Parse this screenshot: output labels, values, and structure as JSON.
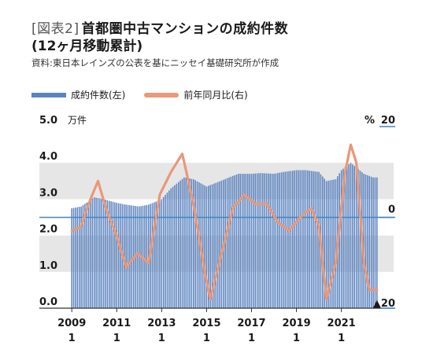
{
  "title_tag": "[図表2]",
  "title": "首都圏中古マンションの成約件数",
  "subtitle": "(12ヶ月移動累計)",
  "source": "資料:東日本レインズの公表を基にニッセイ基礎研究所が作成",
  "colors": {
    "bar": "#5b83bf",
    "line": "#e9987a",
    "band": "#e6e6e6",
    "zero": "#3f86c6"
  },
  "chart_data": {
    "type": "bar+line",
    "legend": [
      "成約件数(左)",
      "前年同月比(右)"
    ],
    "left_axis": {
      "unit": "万件",
      "ylim": [
        0,
        5
      ],
      "ticks": [
        "0.0",
        "1.0",
        "2.0",
        "3.0",
        "4.0",
        "5.0"
      ]
    },
    "right_axis": {
      "unit": "%",
      "ylim": [
        -20,
        20
      ],
      "ticks": [
        "▲20",
        "0",
        "20"
      ]
    },
    "x_ticks": [
      {
        "year": "2009",
        "month": "1"
      },
      {
        "year": "2011",
        "month": "1"
      },
      {
        "year": "2013",
        "month": "1"
      },
      {
        "year": "2015",
        "month": "1"
      },
      {
        "year": "2017",
        "month": "1"
      },
      {
        "year": "2019",
        "month": "1"
      },
      {
        "year": "2021",
        "month": "1"
      }
    ],
    "x_start": "2009-01",
    "series": [
      {
        "name": "成約件数(左)",
        "type": "bar",
        "anchors": [
          [
            "2009-01",
            2.75
          ],
          [
            "2009-06",
            2.8
          ],
          [
            "2010-01",
            3.05
          ],
          [
            "2010-06",
            3.0
          ],
          [
            "2011-01",
            2.9
          ],
          [
            "2011-06",
            2.85
          ],
          [
            "2012-01",
            2.8
          ],
          [
            "2012-06",
            2.85
          ],
          [
            "2013-01",
            3.0
          ],
          [
            "2013-06",
            3.3
          ],
          [
            "2014-01",
            3.6
          ],
          [
            "2014-06",
            3.55
          ],
          [
            "2015-01",
            3.35
          ],
          [
            "2015-06",
            3.45
          ],
          [
            "2016-01",
            3.6
          ],
          [
            "2016-06",
            3.7
          ],
          [
            "2017-01",
            3.7
          ],
          [
            "2017-06",
            3.72
          ],
          [
            "2018-01",
            3.7
          ],
          [
            "2018-06",
            3.75
          ],
          [
            "2019-01",
            3.8
          ],
          [
            "2019-06",
            3.8
          ],
          [
            "2020-01",
            3.75
          ],
          [
            "2020-05",
            3.5
          ],
          [
            "2020-10",
            3.55
          ],
          [
            "2021-01",
            3.8
          ],
          [
            "2021-06",
            4.0
          ],
          [
            "2022-01",
            3.7
          ],
          [
            "2022-06",
            3.6
          ]
        ]
      },
      {
        "name": "前年同月比(右)",
        "type": "line",
        "anchors": [
          [
            "2009-01",
            -3
          ],
          [
            "2009-06",
            -2
          ],
          [
            "2009-10",
            3
          ],
          [
            "2010-03",
            8
          ],
          [
            "2010-08",
            1
          ],
          [
            "2011-01",
            -4
          ],
          [
            "2011-06",
            -11
          ],
          [
            "2011-12",
            -8
          ],
          [
            "2012-06",
            -10
          ],
          [
            "2012-12",
            5
          ],
          [
            "2013-06",
            10
          ],
          [
            "2013-12",
            14
          ],
          [
            "2014-06",
            3
          ],
          [
            "2014-12",
            -12
          ],
          [
            "2015-03",
            -18
          ],
          [
            "2015-09",
            -8
          ],
          [
            "2016-03",
            2
          ],
          [
            "2016-09",
            5
          ],
          [
            "2017-03",
            3
          ],
          [
            "2017-09",
            3
          ],
          [
            "2018-03",
            -1
          ],
          [
            "2018-09",
            -3
          ],
          [
            "2019-03",
            0
          ],
          [
            "2019-09",
            2
          ],
          [
            "2020-01",
            -2
          ],
          [
            "2020-05",
            -18
          ],
          [
            "2020-10",
            -10
          ],
          [
            "2021-03",
            10
          ],
          [
            "2021-06",
            16
          ],
          [
            "2021-09",
            12
          ],
          [
            "2022-01",
            -10
          ],
          [
            "2022-04",
            -16
          ],
          [
            "2022-08",
            -16
          ]
        ]
      }
    ],
    "background_bands": true
  }
}
